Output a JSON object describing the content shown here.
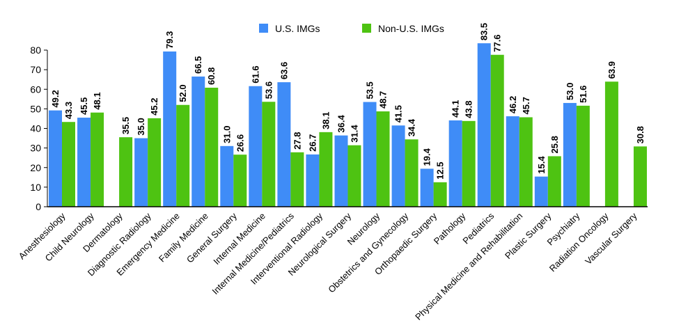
{
  "chart_data": {
    "type": "bar",
    "title": "",
    "xlabel": "",
    "ylabel": "",
    "ylim": [
      0,
      80
    ],
    "yticks": [
      0,
      10,
      20,
      30,
      40,
      50,
      60,
      70,
      80
    ],
    "grid": false,
    "legend_position": "top-center",
    "categories": [
      "Anesthesiology",
      "Child Neurology",
      "Dermatology",
      "Diagnostic Radiology",
      "Emergency Medicine",
      "Family Medicine",
      "General Surgery",
      "Internal Medicine",
      "Internal Medicine/Pediatrics",
      "Interventional Radiology",
      "Neurological Surgery",
      "Neurology",
      "Obstetrics and Gynecology",
      "Orthopaedic Surgery",
      "Pathology",
      "Pediatrics",
      "Physical Medicine and Rehabilitation",
      "Plastic Surgery",
      "Psychiatry",
      "Radiation Oncology",
      "Vascular Surgery"
    ],
    "series": [
      {
        "name": "U.S. IMGs",
        "color": "#3f8cf7",
        "values": [
          49.2,
          45.5,
          null,
          35.0,
          79.3,
          66.5,
          31.0,
          61.6,
          63.6,
          26.7,
          36.4,
          53.5,
          41.5,
          19.4,
          44.1,
          83.5,
          46.2,
          15.4,
          53.0,
          null,
          null
        ],
        "labels": [
          "49.2",
          "45.5",
          "",
          "35.0",
          "79.3",
          "66.5",
          "31.0",
          "61.6",
          "63.6",
          "26.7",
          "36.4",
          "53.5",
          "41.5",
          "19.4",
          "44.1",
          "83.5",
          "46.2",
          "15.4",
          "53.0",
          "",
          ""
        ]
      },
      {
        "name": "Non-U.S. IMGs",
        "color": "#4ec312",
        "values": [
          43.3,
          48.1,
          35.5,
          45.2,
          52.0,
          60.8,
          26.6,
          53.6,
          27.8,
          38.1,
          31.4,
          48.7,
          34.4,
          12.5,
          43.8,
          77.6,
          45.7,
          25.8,
          51.6,
          63.9,
          30.8
        ],
        "labels": [
          "43.3",
          "48.1",
          "35.5",
          "45.2",
          "52.0",
          "60.8",
          "26.6",
          "53.6",
          "27.8",
          "38.1",
          "31.4",
          "48.7",
          "34.4",
          "12.5",
          "43.8",
          "77.6",
          "45.7",
          "25.8",
          "51.6",
          "63.9",
          "30.8"
        ]
      }
    ]
  }
}
